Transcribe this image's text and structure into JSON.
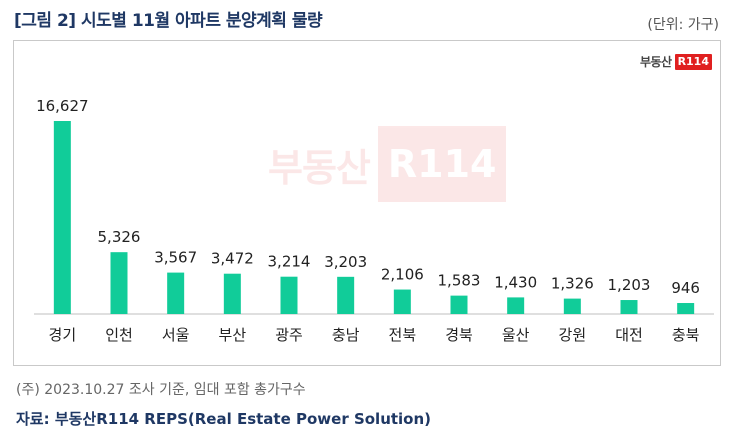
{
  "title": "[그림 2] 시도별 11월 아파트 분양계획 물량",
  "unit": "(단위: 가구)",
  "logo": {
    "text": "부동산",
    "box": "R114"
  },
  "watermark": {
    "text": "부동산",
    "box": "R114"
  },
  "note": "(주) 2023.10.27 조사 기준, 임대 포함 총가구수",
  "source": "자료: 부동산R114 REPS(Real Estate Power Solution)",
  "colors": {
    "bar": "#11cc99",
    "axis": "#bfbfbf",
    "title": "#1f3864"
  },
  "chart_data": {
    "type": "bar",
    "title": "[그림 2] 시도별 11월 아파트 분양계획 물량",
    "xlabel": "",
    "ylabel": "",
    "categories": [
      "경기",
      "인천",
      "서울",
      "부산",
      "광주",
      "충남",
      "전북",
      "경북",
      "울산",
      "강원",
      "대전",
      "충북"
    ],
    "values": [
      16627,
      5326,
      3567,
      3472,
      3214,
      3203,
      2106,
      1583,
      1430,
      1326,
      1203,
      946
    ],
    "value_labels": [
      "16,627",
      "5,326",
      "3,567",
      "3,472",
      "3,214",
      "3,203",
      "2,106",
      "1,583",
      "1,430",
      "1,326",
      "1,203",
      "946"
    ],
    "ylim": [
      0,
      16627
    ],
    "grid": false,
    "legend": "none"
  }
}
